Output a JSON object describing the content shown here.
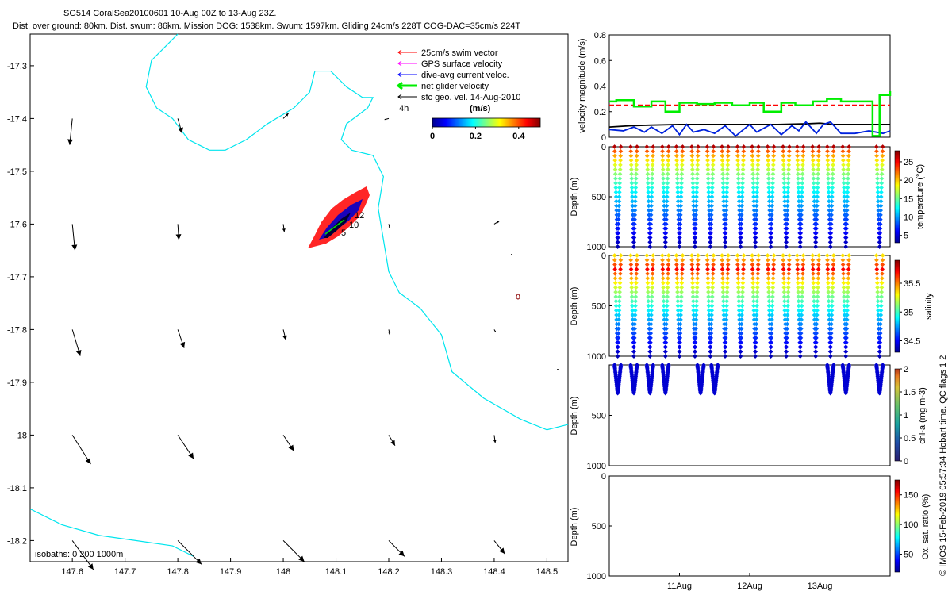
{
  "header": {
    "line1": "SG514 CoralSea20100601 10-Aug 00Z to 13-Aug 23Z.",
    "line2": "Dist. over ground: 80km. Dist. swum: 86km. Mission DOG: 1538km. Swum: 1597km. Gliding 24cm/s 228T COG-DAC=35cm/s 224T"
  },
  "footer_note": "© IMOS 15-Feb-2019 05:57:34 Hobart time. QC flags 1  2",
  "colors": {
    "swim": "#ff0000",
    "gps": "#ff00ff",
    "dac": "#0000ff",
    "net": "#00ee00",
    "geo": "#000000",
    "isobath": "#00e5ee",
    "velBlue": "#0022dd"
  },
  "chart_data": [
    {
      "type": "scatter",
      "xlim": [
        147.52,
        148.54
      ],
      "ylim": [
        -18.24,
        -17.24
      ],
      "xticks": [
        147.6,
        147.7,
        147.8,
        147.9,
        148,
        148.1,
        148.2,
        148.3,
        148.4,
        148.5
      ],
      "xtick_labels": [
        "147.6",
        "147.7",
        "147.8",
        "147.9",
        "148",
        "148.1",
        "148.2",
        "148.3",
        "148.4",
        "148.5"
      ],
      "yticks": [
        -17.3,
        -17.4,
        -17.5,
        -17.6,
        -17.7,
        -17.8,
        -17.9,
        -18.0,
        -18.1,
        -18.2
      ],
      "ytick_labels": [
        "-17.3",
        "-17.4",
        "-17.5",
        "-17.6",
        "-17.7",
        "-17.8",
        "-17.9",
        "-18",
        "-18.1",
        "-18.2"
      ],
      "legend": {
        "placement": "top-right",
        "entries": [
          "25cm/s swim vector",
          "GPS surface velocity",
          "dive-avg current veloc.",
          "net glider velocity",
          "sfc geo. vel. 14-Aug-2010"
        ],
        "scale_label": "4h"
      },
      "colorbar": {
        "title": "(m/s)",
        "ticks": [
          0,
          0.2,
          0.4
        ],
        "tick_labels": [
          "0",
          "0.2",
          "0.4"
        ],
        "range": [
          0,
          0.5
        ]
      },
      "isobath_label": "isobaths: 0   200   1000m",
      "track_labels": [
        "12",
        "10",
        "5"
      ],
      "isobath_lines": [
        [
          [
            147.8,
            -17.24
          ],
          [
            147.78,
            -17.26
          ],
          [
            147.75,
            -17.29
          ],
          [
            147.74,
            -17.34
          ],
          [
            147.76,
            -17.38
          ],
          [
            147.79,
            -17.4
          ],
          [
            147.82,
            -17.44
          ],
          [
            147.86,
            -17.46
          ],
          [
            147.89,
            -17.46
          ],
          [
            147.93,
            -17.44
          ],
          [
            147.97,
            -17.41
          ],
          [
            148.02,
            -17.38
          ],
          [
            148.05,
            -17.35
          ],
          [
            148.06,
            -17.31
          ],
          [
            148.09,
            -17.31
          ],
          [
            148.12,
            -17.34
          ],
          [
            148.15,
            -17.36
          ],
          [
            148.17,
            -17.36
          ],
          [
            148.16,
            -17.38
          ],
          [
            148.12,
            -17.41
          ],
          [
            148.11,
            -17.44
          ],
          [
            148.13,
            -17.46
          ],
          [
            148.17,
            -17.47
          ],
          [
            148.19,
            -17.51
          ],
          [
            148.18,
            -17.57
          ],
          [
            148.19,
            -17.63
          ],
          [
            148.2,
            -17.69
          ],
          [
            148.22,
            -17.73
          ],
          [
            148.26,
            -17.76
          ],
          [
            148.3,
            -17.81
          ],
          [
            148.32,
            -17.88
          ],
          [
            148.38,
            -17.93
          ],
          [
            148.45,
            -17.97
          ],
          [
            148.5,
            -17.99
          ],
          [
            148.54,
            -17.98
          ]
        ],
        [
          [
            147.52,
            -18.14
          ],
          [
            147.58,
            -18.17
          ],
          [
            147.65,
            -18.19
          ],
          [
            147.72,
            -18.2
          ],
          [
            147.79,
            -18.21
          ],
          [
            147.83,
            -18.23
          ]
        ]
      ],
      "geo_vectors": [
        {
          "x": 147.6,
          "y": -17.4,
          "u": -0.005,
          "v": -0.05
        },
        {
          "x": 147.8,
          "y": -17.4,
          "u": 0.008,
          "v": -0.028
        },
        {
          "x": 148.0,
          "y": -17.4,
          "u": 0.01,
          "v": 0.01
        },
        {
          "x": 148.2,
          "y": -17.4,
          "u": -0.008,
          "v": -0.002
        },
        {
          "x": 148.4,
          "y": -17.4,
          "u": -0.004,
          "v": -0.003
        },
        {
          "x": 147.6,
          "y": -17.6,
          "u": 0.005,
          "v": -0.05
        },
        {
          "x": 147.8,
          "y": -17.6,
          "u": 0.002,
          "v": -0.03
        },
        {
          "x": 148.0,
          "y": -17.6,
          "u": 0.002,
          "v": -0.015
        },
        {
          "x": 148.2,
          "y": -17.6,
          "u": 0.002,
          "v": -0.008
        },
        {
          "x": 148.4,
          "y": -17.6,
          "u": 0.01,
          "v": 0.006
        },
        {
          "x": 147.6,
          "y": -17.8,
          "u": 0.015,
          "v": -0.05
        },
        {
          "x": 147.8,
          "y": -17.8,
          "u": 0.012,
          "v": -0.035
        },
        {
          "x": 148.0,
          "y": -17.8,
          "u": 0.005,
          "v": -0.02
        },
        {
          "x": 148.2,
          "y": -17.8,
          "u": 0.002,
          "v": -0.01
        },
        {
          "x": 148.4,
          "y": -17.8,
          "u": 0.003,
          "v": -0.005
        },
        {
          "x": 147.6,
          "y": -18.0,
          "u": 0.035,
          "v": -0.055
        },
        {
          "x": 147.8,
          "y": -18.0,
          "u": 0.03,
          "v": -0.045
        },
        {
          "x": 148.0,
          "y": -18.0,
          "u": 0.02,
          "v": -0.03
        },
        {
          "x": 148.2,
          "y": -18.0,
          "u": 0.012,
          "v": -0.02
        },
        {
          "x": 148.4,
          "y": -18.0,
          "u": 0.002,
          "v": -0.015
        },
        {
          "x": 147.6,
          "y": -18.2,
          "u": 0.04,
          "v": -0.055
        },
        {
          "x": 147.8,
          "y": -18.2,
          "u": 0.045,
          "v": -0.045
        },
        {
          "x": 148.0,
          "y": -18.2,
          "u": 0.04,
          "v": -0.04
        },
        {
          "x": 148.2,
          "y": -18.2,
          "u": 0.03,
          "v": -0.03
        },
        {
          "x": 148.4,
          "y": -18.2,
          "u": 0.02,
          "v": -0.025
        }
      ]
    },
    {
      "type": "line",
      "ylabel": "velocity magnitude (m/s)",
      "ylim": [
        0,
        0.8
      ],
      "yticks": [
        0,
        0.2,
        0.4,
        0.6,
        0.8
      ],
      "ytick_labels": [
        "0",
        "0.2",
        "0.4",
        "0.6",
        "0.8"
      ],
      "xlim": [
        0,
        4
      ],
      "series": [
        {
          "color": "#ff0000",
          "dash": true,
          "x": [
            0.0,
            4.0
          ],
          "y": [
            0.25,
            0.25
          ]
        },
        {
          "color": "#000000",
          "x": [
            0.0,
            0.3,
            0.6,
            1.0,
            1.3,
            1.6,
            2.0,
            2.4,
            2.8,
            3.0,
            3.2,
            3.5,
            4.0
          ],
          "y": [
            0.08,
            0.09,
            0.095,
            0.1,
            0.1,
            0.1,
            0.1,
            0.1,
            0.105,
            0.11,
            0.1,
            0.1,
            0.1
          ]
        },
        {
          "color": "#0022dd",
          "x": [
            0.0,
            0.2,
            0.35,
            0.5,
            0.6,
            0.75,
            0.9,
            1.0,
            1.1,
            1.2,
            1.35,
            1.5,
            1.65,
            1.8,
            2.0,
            2.1,
            2.3,
            2.45,
            2.6,
            2.7,
            2.8,
            2.95,
            3.05,
            3.15,
            3.3,
            3.5,
            3.7,
            3.9,
            4.0
          ],
          "y": [
            0.06,
            0.05,
            0.08,
            0.04,
            0.08,
            0.03,
            0.09,
            0.02,
            0.1,
            0.04,
            0.06,
            0.03,
            0.09,
            0.01,
            0.1,
            0.04,
            0.1,
            0.02,
            0.09,
            0.05,
            0.12,
            0.03,
            0.1,
            0.12,
            0.03,
            0.03,
            0.05,
            0.03,
            0.05
          ]
        },
        {
          "color": "#00ee00",
          "step": true,
          "x": [
            0.0,
            0.1,
            0.35,
            0.6,
            0.8,
            1.0,
            1.25,
            1.5,
            1.75,
            2.0,
            2.2,
            2.45,
            2.65,
            2.9,
            3.1,
            3.3,
            3.75,
            3.85,
            4.0
          ],
          "y": [
            0.28,
            0.29,
            0.24,
            0.28,
            0.2,
            0.27,
            0.26,
            0.27,
            0.25,
            0.27,
            0.2,
            0.27,
            0.25,
            0.28,
            0.3,
            0.28,
            0.01,
            0.33,
            0.36
          ]
        }
      ]
    },
    {
      "type": "scatter",
      "ylabel": "Depth (m)",
      "ylim": [
        1000,
        0
      ],
      "yticks": [
        0,
        500,
        1000
      ],
      "ytick_labels": [
        "0",
        "500",
        "1000"
      ],
      "xlim": [
        0,
        4
      ],
      "colorbar": {
        "label": "temperature (°C)",
        "range": [
          3,
          28
        ],
        "ticks": [
          5,
          10,
          15,
          20,
          25
        ],
        "tick_labels": [
          "5",
          "10",
          "15",
          "20",
          "25"
        ]
      },
      "profiles": {
        "dives": [
          0.12,
          0.35,
          0.58,
          0.8,
          1.0,
          1.22,
          1.44,
          1.65,
          1.87,
          2.08,
          2.3,
          2.52,
          2.72,
          2.94,
          3.15,
          3.37,
          3.85
        ],
        "max_depth": 1000
      }
    },
    {
      "type": "scatter",
      "ylabel": "Depth (m)",
      "ylim": [
        1000,
        0
      ],
      "yticks": [
        0,
        500,
        1000
      ],
      "ytick_labels": [
        "0",
        "500",
        "1000"
      ],
      "xlim": [
        0,
        4
      ],
      "colorbar": {
        "label": "salinity",
        "range": [
          34.3,
          35.9
        ],
        "ticks": [
          34.5,
          35,
          35.5
        ],
        "tick_labels": [
          "34.5",
          "35",
          "35.5"
        ]
      },
      "profiles": {
        "dives": [
          0.12,
          0.35,
          0.58,
          0.8,
          1.0,
          1.22,
          1.44,
          1.65,
          1.87,
          2.08,
          2.3,
          2.52,
          2.72,
          2.94,
          3.15,
          3.37,
          3.85
        ],
        "max_depth": 1000
      }
    },
    {
      "type": "scatter",
      "ylabel": "Depth (m)",
      "ylim": [
        1000,
        0
      ],
      "yticks": [
        500,
        1000
      ],
      "ytick_labels": [
        "500",
        "1000"
      ],
      "xlim": [
        0,
        4
      ],
      "colorbar": {
        "label": "chl-a (mg m-3)",
        "range": [
          0,
          2
        ],
        "ticks": [
          0,
          0.5,
          1,
          1.5,
          2
        ],
        "tick_labels": [
          "0",
          "0.5",
          "1",
          "1.5",
          "2"
        ]
      },
      "profiles": {
        "dives": [
          0.12,
          0.35,
          0.58,
          0.8,
          1.3,
          1.5,
          3.15,
          3.37,
          3.85
        ],
        "max_depth": 280
      }
    },
    {
      "type": "scatter",
      "ylabel": "Depth (m)",
      "ylim": [
        1000,
        0
      ],
      "yticks": [
        0,
        500,
        1000
      ],
      "ytick_labels": [
        "0",
        "500",
        "1000"
      ],
      "xlim": [
        0,
        4
      ],
      "xticks": [
        1,
        2,
        3
      ],
      "xtick_labels": [
        "11Aug",
        "12Aug",
        "13Aug"
      ],
      "colorbar": {
        "label": "Ox. sat. ratio (%)",
        "range": [
          20,
          175
        ],
        "ticks": [
          50,
          100,
          150
        ],
        "tick_labels": [
          "50",
          "100",
          "150"
        ]
      }
    }
  ]
}
